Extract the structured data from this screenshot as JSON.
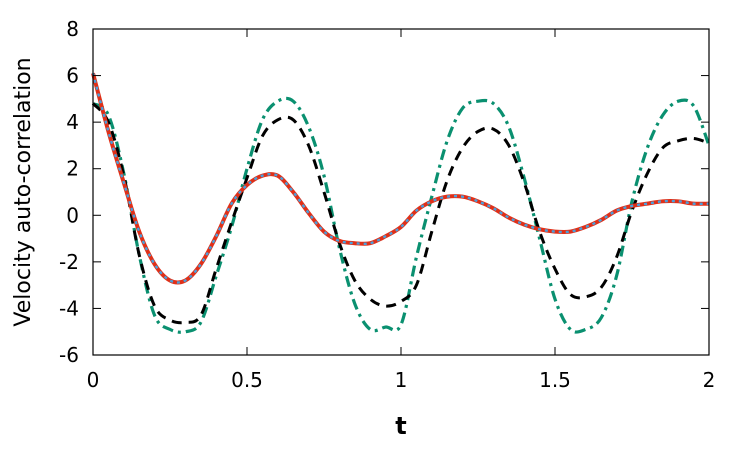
{
  "chart_data": {
    "type": "line",
    "title": "",
    "xlabel": "t",
    "ylabel": "Velocity auto-correlation",
    "xlim": [
      0,
      2
    ],
    "ylim": [
      -6,
      8
    ],
    "x_ticks": [
      0,
      0.5,
      1,
      1.5,
      2
    ],
    "x_tick_labels": [
      "0",
      "0.5",
      "1",
      "1.5",
      "2"
    ],
    "y_ticks": [
      -6,
      -4,
      -2,
      0,
      2,
      4,
      6,
      8
    ],
    "y_tick_labels": [
      "-6",
      "-4",
      "-2",
      "0",
      "2",
      "4",
      "6",
      "8"
    ],
    "grid": false,
    "legend": "none",
    "x": [
      0,
      0.05,
      0.1,
      0.15,
      0.2,
      0.25,
      0.3,
      0.35,
      0.4,
      0.45,
      0.5,
      0.55,
      0.6,
      0.65,
      0.7,
      0.75,
      0.8,
      0.85,
      0.9,
      0.95,
      1.0,
      1.05,
      1.1,
      1.15,
      1.2,
      1.25,
      1.3,
      1.35,
      1.4,
      1.45,
      1.5,
      1.55,
      1.6,
      1.65,
      1.7,
      1.75,
      1.8,
      1.85,
      1.9,
      1.95,
      2.0
    ],
    "series": [
      {
        "color": "#0a9070",
        "style": "dashdot",
        "width": 3.2,
        "values": [
          4.8,
          4.3,
          1.8,
          -1.7,
          -4.3,
          -4.9,
          -5.0,
          -4.6,
          -2.6,
          -0.5,
          2.0,
          4.1,
          4.9,
          4.9,
          3.8,
          1.7,
          -1.4,
          -3.8,
          -4.9,
          -4.8,
          -4.7,
          -1.8,
          0.8,
          3.2,
          4.6,
          4.9,
          4.8,
          3.8,
          1.6,
          -1.0,
          -3.6,
          -4.9,
          -4.9,
          -4.4,
          -2.6,
          0.6,
          2.9,
          4.3,
          4.9,
          4.7,
          3.0
        ]
      },
      {
        "color": "#000000",
        "style": "dashed",
        "width": 3,
        "values": [
          4.8,
          4.0,
          1.7,
          -1.7,
          -3.9,
          -4.5,
          -4.6,
          -4.3,
          -2.3,
          -0.3,
          1.6,
          3.4,
          4.1,
          4.1,
          3.0,
          1.0,
          -1.2,
          -2.8,
          -3.6,
          -3.9,
          -3.7,
          -3.0,
          -0.7,
          1.5,
          2.9,
          3.6,
          3.7,
          3.0,
          1.4,
          -0.7,
          -2.3,
          -3.4,
          -3.5,
          -3.1,
          -1.8,
          0.2,
          1.8,
          2.9,
          3.2,
          3.3,
          3.1
        ]
      },
      {
        "color": "#e03018",
        "style": "solid",
        "width": 4,
        "values": [
          6.1,
          3.6,
          1.4,
          -0.7,
          -2.1,
          -2.8,
          -2.8,
          -2.1,
          -0.9,
          0.5,
          1.3,
          1.7,
          1.7,
          1.0,
          0.1,
          -0.7,
          -1.1,
          -1.2,
          -1.2,
          -0.9,
          -0.5,
          0.2,
          0.6,
          0.8,
          0.8,
          0.6,
          0.3,
          -0.1,
          -0.4,
          -0.6,
          -0.7,
          -0.7,
          -0.5,
          -0.2,
          0.2,
          0.4,
          0.5,
          0.6,
          0.6,
          0.5,
          0.5
        ]
      },
      {
        "color": "#4aa0dc",
        "style": "dotted",
        "width": 2.4,
        "values": [
          6.1,
          3.6,
          1.4,
          -0.7,
          -2.1,
          -2.8,
          -2.8,
          -2.1,
          -0.9,
          0.5,
          1.3,
          1.7,
          1.7,
          1.0,
          0.1,
          -0.7,
          -1.1,
          -1.2,
          -1.2,
          -0.9,
          -0.5,
          0.2,
          0.6,
          0.8,
          0.8,
          0.6,
          0.3,
          -0.1,
          -0.4,
          -0.6,
          -0.7,
          -0.7,
          -0.5,
          -0.2,
          0.2,
          0.4,
          0.5,
          0.6,
          0.6,
          0.5,
          0.5
        ]
      }
    ]
  }
}
